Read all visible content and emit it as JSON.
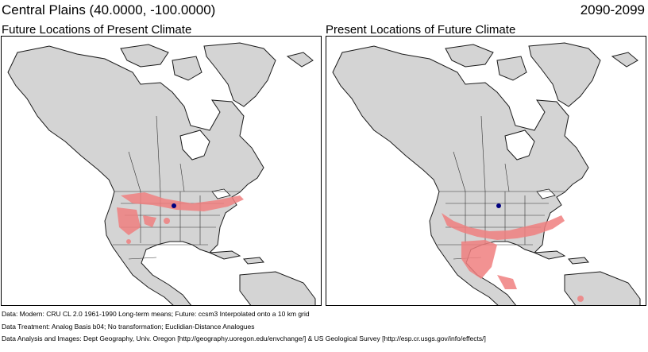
{
  "header": {
    "title": "Central Plains  (40.0000, -100.0000)",
    "period": "2090-2099"
  },
  "panels": [
    {
      "title": "Future Locations of Present Climate"
    },
    {
      "title": "Present Locations of Future Climate"
    }
  ],
  "colors": {
    "land": "#d4d4d4",
    "water": "#ffffff",
    "border": "#1a1a1a",
    "analog": "#f08080",
    "marker": "#000080"
  },
  "footer": {
    "data": "Data:  Modern: CRU CL 2.0 1961-1990 Long-term means; Future: ccsm3 Interpolated onto a 10 km grid",
    "treatment": "Data Treatment:  Analog Basis b04; No transformation; Euclidian-Distance Analogues",
    "analysis": "Data Analysis and Images:  Dept Geography, Univ. Oregon [http://geography.uoregon.edu/envchange/] & US Geological Survey [http://esp.cr.usgs.gov/info/effects/]"
  }
}
